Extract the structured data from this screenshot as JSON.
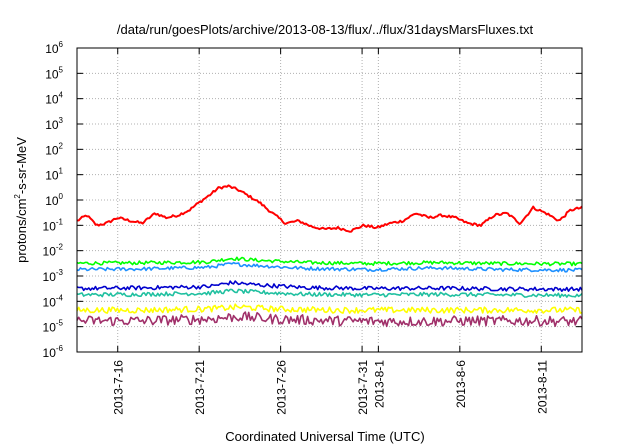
{
  "chart_data": {
    "type": "line",
    "title": "/data/run/goesPlots/archive/2013-08-13/flux/../flux/31daysMarsFluxes.txt",
    "xlabel": "Coordinated Universal Time (UTC)",
    "ylabel": "protons/cm²-s-sr-MeV",
    "ylabel_parts": {
      "pre": "protons/cm",
      "sup": "2",
      "post": "-s-sr-MeV"
    },
    "yscale": "log",
    "ylim": [
      1e-06,
      1000000.0
    ],
    "xlim_days": [
      0,
      31
    ],
    "grid": true,
    "x_ticks": [
      {
        "label": "2013-7-16",
        "day": 2.5
      },
      {
        "label": "2013-7-21",
        "day": 7.5
      },
      {
        "label": "2013-7-26",
        "day": 12.5
      },
      {
        "label": "2013-7-31",
        "day": 17.5
      },
      {
        "label": "2013-8-1",
        "day": 18.5
      },
      {
        "label": "2013-8-6",
        "day": 23.5
      },
      {
        "label": "2013-8-11",
        "day": 28.5
      }
    ],
    "y_ticks": [
      {
        "base": "10",
        "exp": "-6",
        "value": -6
      },
      {
        "base": "10",
        "exp": "-5",
        "value": -5
      },
      {
        "base": "10",
        "exp": "-4",
        "value": -4
      },
      {
        "base": "10",
        "exp": "-3",
        "value": -3
      },
      {
        "base": "10",
        "exp": "-2",
        "value": -2
      },
      {
        "base": "10",
        "exp": "-1",
        "value": -1
      },
      {
        "base": "10",
        "exp": "0",
        "value": 0
      },
      {
        "base": "10",
        "exp": "1",
        "value": 1
      },
      {
        "base": "10",
        "exp": "2",
        "value": 2
      },
      {
        "base": "10",
        "exp": "3",
        "value": 3
      },
      {
        "base": "10",
        "exp": "4",
        "value": 4
      },
      {
        "base": "10",
        "exp": "5",
        "value": 5
      },
      {
        "base": "10",
        "exp": "6",
        "value": 6
      }
    ],
    "series": [
      {
        "color": "#ff0000",
        "width": 2,
        "noise": 0.05,
        "x": [
          0,
          0.6,
          1.2,
          1.8,
          2.5,
          3.3,
          4.0,
          4.8,
          5.5,
          6.2,
          6.9,
          7.5,
          8.1,
          8.7,
          9.3,
          9.9,
          10.5,
          11.2,
          12.0,
          12.8,
          13.6,
          14.4,
          15.2,
          16.0,
          16.8,
          17.6,
          18.4,
          19.2,
          20.0,
          20.8,
          21.6,
          22.4,
          23.2,
          24.0,
          24.8,
          25.6,
          26.4,
          27.2,
          28.0,
          28.8,
          29.6,
          30.3,
          31.0
        ],
        "y": [
          0.15,
          0.25,
          0.1,
          0.12,
          0.2,
          0.15,
          0.12,
          0.3,
          0.2,
          0.25,
          0.4,
          0.8,
          1.5,
          3.0,
          3.5,
          2.5,
          1.5,
          0.8,
          0.3,
          0.12,
          0.15,
          0.09,
          0.07,
          0.08,
          0.06,
          0.1,
          0.08,
          0.12,
          0.15,
          0.3,
          0.2,
          0.25,
          0.2,
          0.12,
          0.1,
          0.25,
          0.3,
          0.12,
          0.5,
          0.3,
          0.15,
          0.4,
          0.5
        ]
      },
      {
        "color": "#00ff00",
        "width": 1.6,
        "noise": 0.07,
        "x": [
          0,
          4,
          8,
          9.5,
          11,
          14,
          18,
          22,
          26,
          31
        ],
        "y": [
          0.0032,
          0.0033,
          0.0036,
          0.005,
          0.0042,
          0.0034,
          0.0031,
          0.0034,
          0.0031,
          0.003
        ]
      },
      {
        "color": "#1e90ff",
        "width": 1.6,
        "noise": 0.07,
        "x": [
          0,
          4,
          8,
          9.5,
          11,
          14,
          18,
          22,
          26,
          31
        ],
        "y": [
          0.0018,
          0.0019,
          0.0022,
          0.003,
          0.0026,
          0.002,
          0.0018,
          0.0021,
          0.0018,
          0.0017
        ]
      },
      {
        "color": "#0000cd",
        "width": 1.6,
        "noise": 0.08,
        "x": [
          0,
          4,
          8,
          9.5,
          11,
          14,
          18,
          22,
          26,
          31
        ],
        "y": [
          0.00032,
          0.00034,
          0.00038,
          0.00055,
          0.00045,
          0.00035,
          0.00032,
          0.00033,
          0.00031,
          0.0003
        ]
      },
      {
        "color": "#20c0a0",
        "width": 1.6,
        "noise": 0.08,
        "x": [
          0,
          4,
          8,
          9.5,
          11,
          14,
          18,
          22,
          26,
          31
        ],
        "y": [
          0.00018,
          0.00019,
          0.00021,
          0.00026,
          0.00023,
          0.00019,
          0.00018,
          0.00019,
          0.00018,
          0.00017
        ]
      },
      {
        "color": "#ffff00",
        "width": 1.6,
        "noise": 0.12,
        "x": [
          0,
          4,
          8,
          10,
          12,
          16,
          20,
          24,
          28,
          31
        ],
        "y": [
          4.5e-05,
          4.5e-05,
          5e-05,
          6e-05,
          5e-05,
          4.5e-05,
          4.5e-05,
          4.5e-05,
          4.5e-05,
          4.5e-05
        ]
      },
      {
        "color": "#a0306a",
        "width": 1.6,
        "noise": 0.2,
        "x": [
          0,
          4,
          8,
          10,
          12,
          16,
          20,
          24,
          28,
          31
        ],
        "y": [
          1.7e-05,
          1.7e-05,
          2e-05,
          2.5e-05,
          2e-05,
          1.7e-05,
          1.6e-05,
          1.7e-05,
          1.7e-05,
          1.6e-05
        ]
      }
    ]
  }
}
